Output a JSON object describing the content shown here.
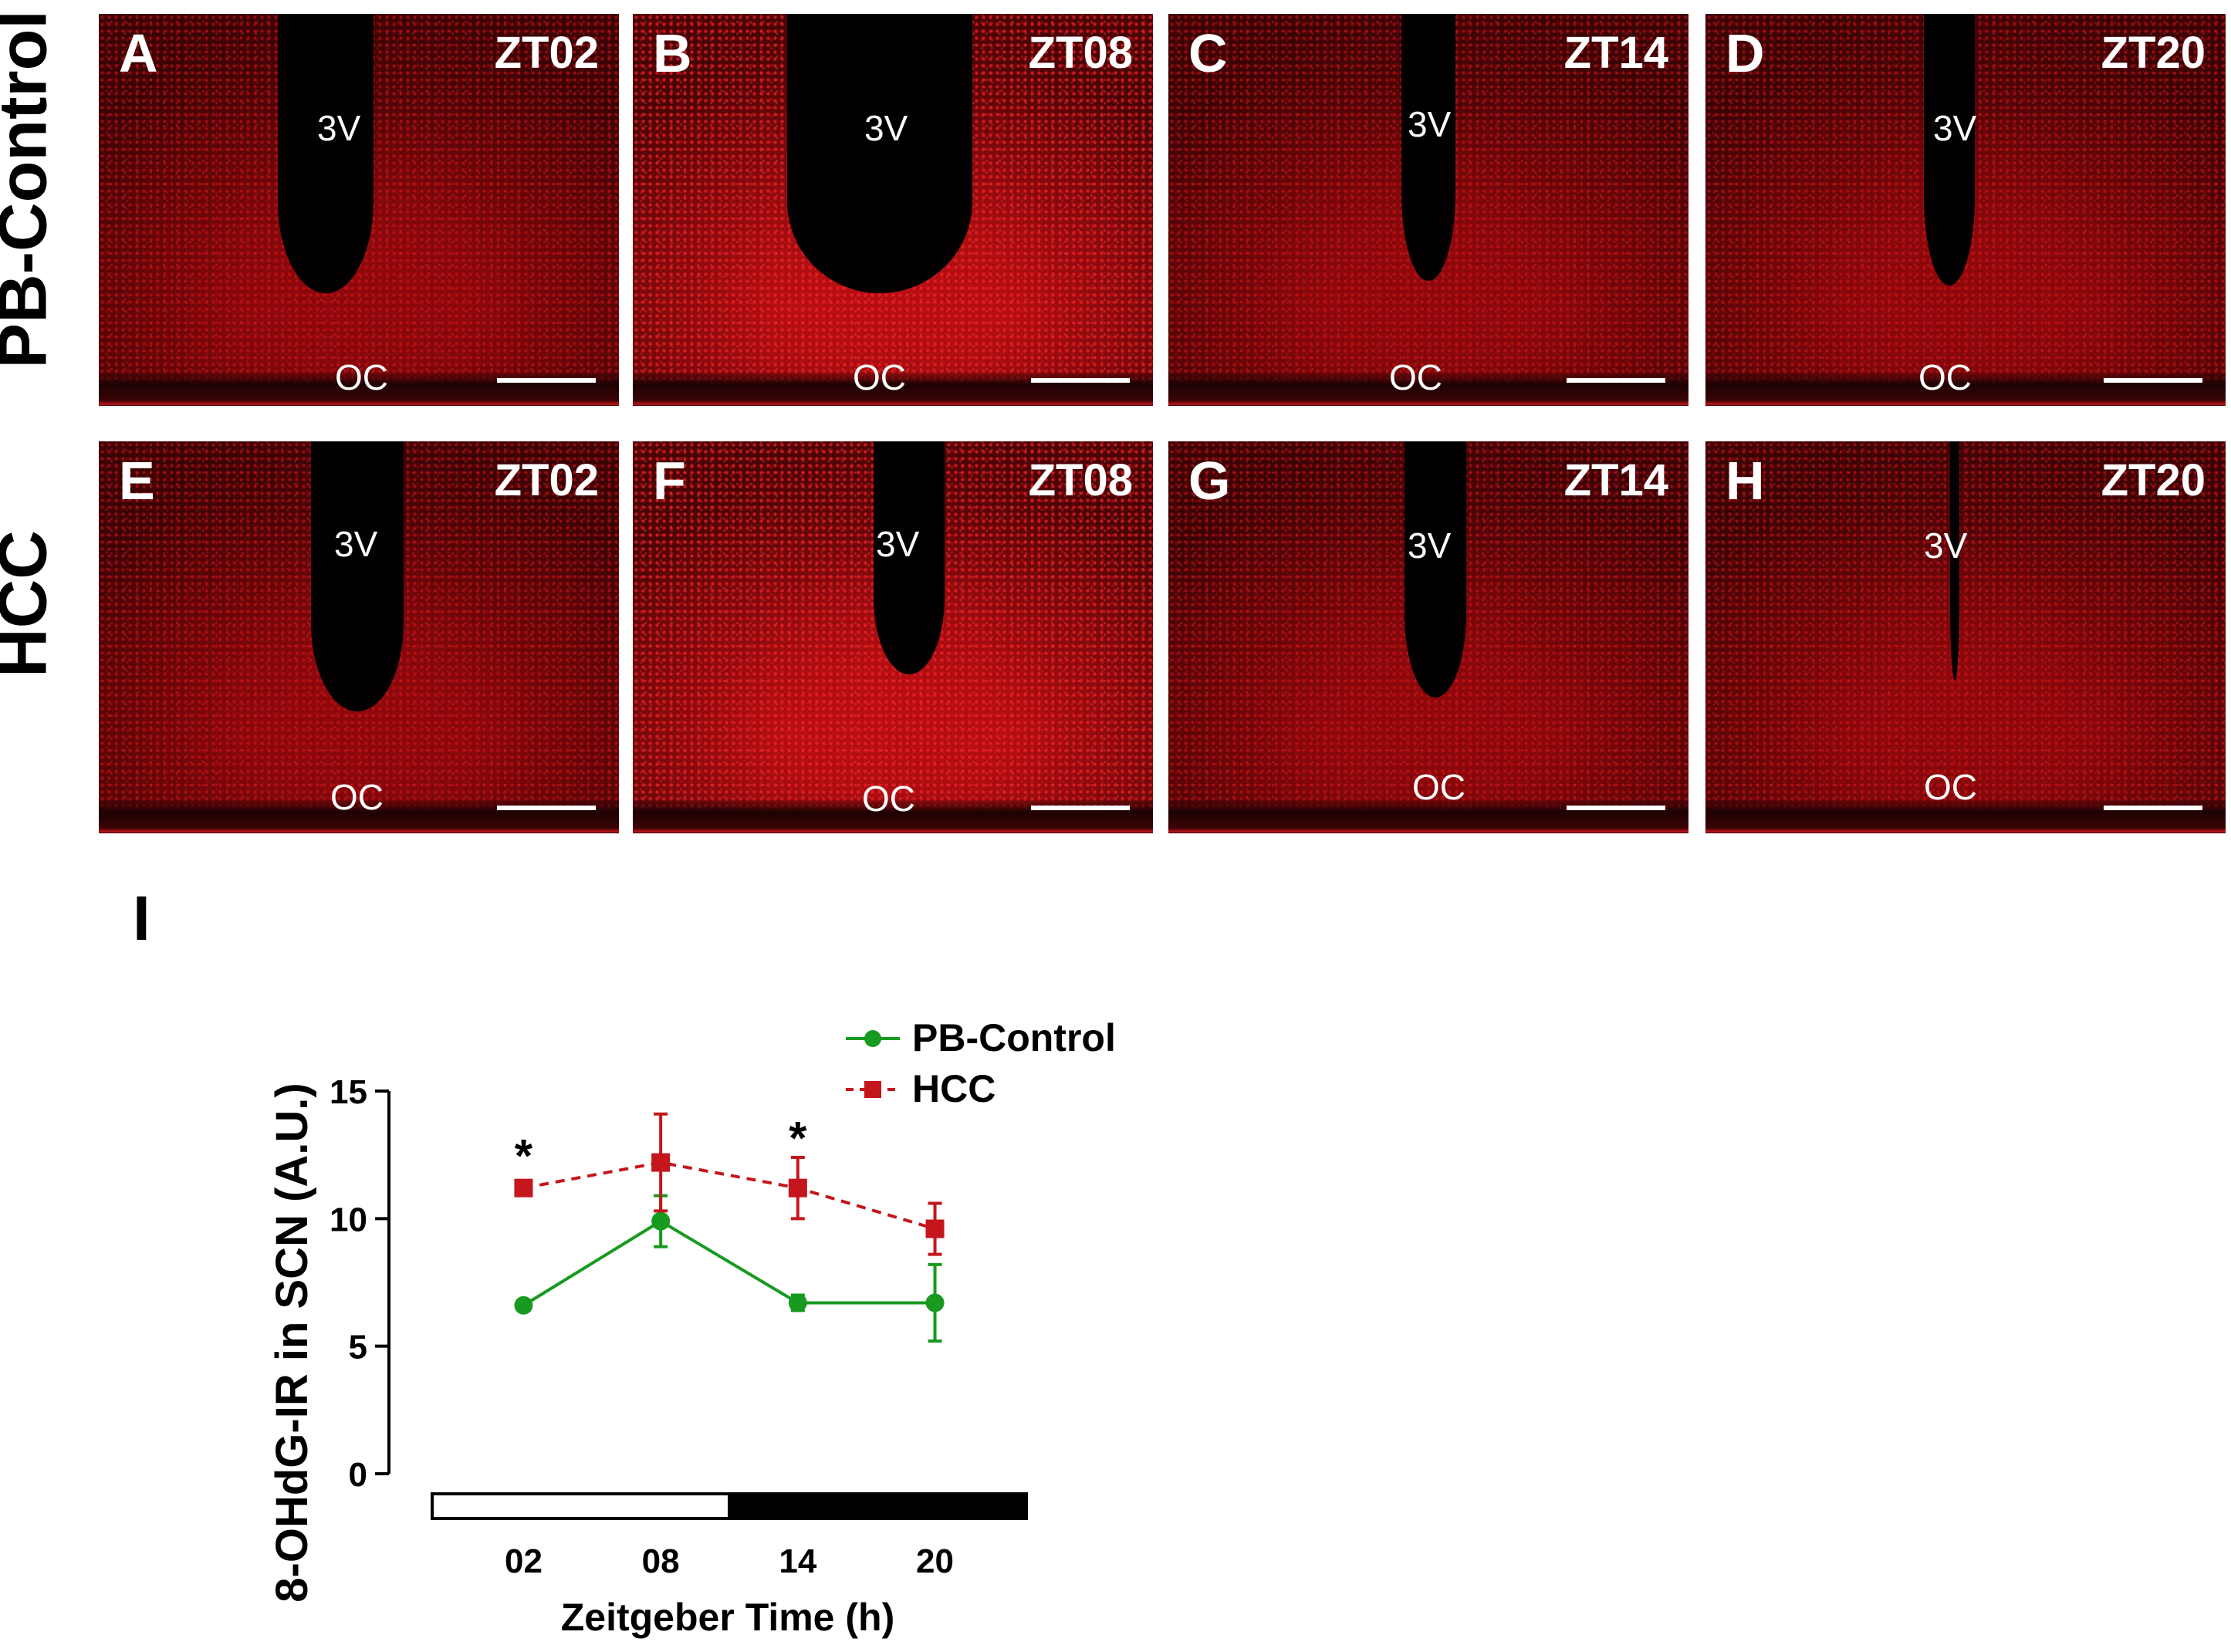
{
  "row_labels": [
    "PB-Control",
    "HCC"
  ],
  "panels": [
    {
      "label": "A",
      "zt": "ZT02",
      "v": "3V",
      "oc": "OC"
    },
    {
      "label": "B",
      "zt": "ZT08",
      "v": "3V",
      "oc": "OC"
    },
    {
      "label": "C",
      "zt": "ZT14",
      "v": "3V",
      "oc": "OC"
    },
    {
      "label": "D",
      "zt": "ZT20",
      "v": "3V",
      "oc": "OC"
    },
    {
      "label": "E",
      "zt": "ZT02",
      "v": "3V",
      "oc": "OC"
    },
    {
      "label": "F",
      "zt": "ZT08",
      "v": "3V",
      "oc": "OC"
    },
    {
      "label": "G",
      "zt": "ZT14",
      "v": "3V",
      "oc": "OC"
    },
    {
      "label": "H",
      "zt": "ZT20",
      "v": "3V",
      "oc": "OC"
    }
  ],
  "chart_panel_label": "I",
  "chart_data": {
    "type": "line",
    "title": "",
    "xlabel": "Zeitgeber Time (h)",
    "ylabel": "8-OHdG-IR in SCN (A.U.)",
    "categories": [
      "02",
      "08",
      "14",
      "20"
    ],
    "x": [
      2,
      8,
      14,
      20
    ],
    "xlim": [
      -2,
      24
    ],
    "ylim": [
      0,
      15
    ],
    "yticks": [
      0,
      5,
      10,
      15
    ],
    "light_dark_bar": {
      "light": [
        -2,
        11
      ],
      "dark": [
        11,
        24
      ]
    },
    "legend_position": "top-right",
    "series": [
      {
        "name": "PB-Control",
        "color": "#179a1f",
        "marker": "circle",
        "line": "solid",
        "values": [
          6.6,
          9.9,
          6.7,
          6.7
        ],
        "errors": [
          0.2,
          1.0,
          0.3,
          1.5
        ]
      },
      {
        "name": "HCC",
        "color": "#c4161c",
        "marker": "square",
        "line": "dashed",
        "values": [
          11.2,
          12.2,
          11.2,
          9.6
        ],
        "errors": [
          0.2,
          1.9,
          1.2,
          1.0
        ]
      }
    ],
    "annotations": [
      {
        "x": 2,
        "y": 12.5,
        "text": "*"
      },
      {
        "x": 14,
        "y": 13.2,
        "text": "*"
      }
    ]
  }
}
